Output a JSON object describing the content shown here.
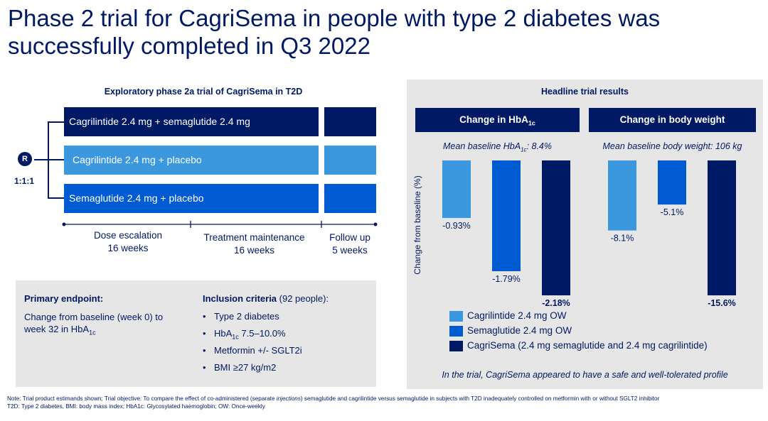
{
  "title": "Phase 2 trial for CagriSema in people with type 2 diabetes was successfully completed in Q3 2022",
  "design": {
    "heading": "Exploratory phase 2a trial of CagriSema in T2D",
    "randomization_symbol": "R",
    "ratio": "1:1:1",
    "arms": [
      {
        "label": "Cagrilintide 2.4 mg + semaglutide 2.4 mg",
        "color": "#001965"
      },
      {
        "label": "Cagrilintide 2.4 mg + placebo",
        "color": "#3b97de"
      },
      {
        "label": "Semaglutide 2.4 mg  + placebo",
        "color": "#005ad2"
      }
    ],
    "phases": [
      {
        "name": "Dose escalation",
        "duration": "16 weeks"
      },
      {
        "name": "Treatment maintenance",
        "duration": "16 weeks"
      },
      {
        "name": "Follow up",
        "duration": "5 weeks"
      }
    ]
  },
  "endpoints": {
    "primary_title": "Primary endpoint:",
    "primary_text_line1": "Change from baseline (week 0) to",
    "primary_text_line2": "week 32 in HbA",
    "primary_text_sub": "1c",
    "inclusion_title": "Inclusion criteria",
    "inclusion_count": " (92 people):",
    "inclusion_items": [
      "Type 2 diabetes",
      "HbA",
      "Metformin +/- SGLT2i",
      "BMI ≥27 kg/m2"
    ],
    "hba_sub": "1c",
    "hba_range": " 7.5–10.0%"
  },
  "results": {
    "heading": "Headline trial results",
    "ylabel": "Change from baseline (%)",
    "hba1c_header": "Change in HbA",
    "hba1c_header_sub": "1c",
    "weight_header": "Change in body weight",
    "hba1c_baseline": "Mean baseline HbA",
    "hba1c_baseline_sub": "1c",
    "hba1c_baseline_val": ": 8.4%",
    "weight_baseline": "Mean baseline body weight: 106 kg",
    "legend": [
      {
        "label": "Cagrilintide 2.4 mg OW",
        "color": "#3b97de"
      },
      {
        "label": "Semaglutide 2.4 mg OW",
        "color": "#005ad2"
      },
      {
        "label": "CagriSema (2.4 mg semaglutide and 2.4 mg cagrilintide)",
        "color": "#001965"
      }
    ],
    "profile_note": "In the trial, CagriSema appeared to have a safe and well-tolerated profile"
  },
  "chart_data": [
    {
      "type": "bar",
      "title": "Change in HbA1c",
      "categories": [
        "Cagrilintide 2.4 mg OW",
        "Semaglutide 2.4 mg OW",
        "CagriSema"
      ],
      "values": [
        -0.93,
        -1.79,
        -2.18
      ],
      "labels": [
        "-0.93%",
        "-1.79%",
        "-2.18%"
      ],
      "colors": [
        "#3b97de",
        "#005ad2",
        "#001965"
      ],
      "bold_last": true,
      "ylabel": "Change from baseline (%)",
      "ylim": [
        -2.18,
        0
      ]
    },
    {
      "type": "bar",
      "title": "Change in body weight",
      "categories": [
        "Cagrilintide 2.4 mg OW",
        "Semaglutide 2.4 mg OW",
        "CagriSema"
      ],
      "values": [
        -8.1,
        -5.1,
        -15.6
      ],
      "labels": [
        "-8.1%",
        "-5.1%",
        "-15.6%"
      ],
      "colors": [
        "#3b97de",
        "#005ad2",
        "#001965"
      ],
      "bold_last": true,
      "ylabel": "Change from baseline (%)",
      "ylim": [
        -15.6,
        0
      ]
    }
  ],
  "footnote": {
    "line1_a": "Note: Trial product estimands shown; ",
    "line1_b": "Trial objective: To compare the effect of co-administered (separate ",
    "line1_c": "injections",
    "line1_d": ") semaglutide and cagrilintide versus semaglutide in subjects with T2D inadequately controlled on metformin with or without SGLT2 inhibitor",
    "line2": "T2D: Type 2 diabetes, BMI: body mass index; HbA1c: Glycosylated haemoglobin; OW: Once-weekly"
  }
}
